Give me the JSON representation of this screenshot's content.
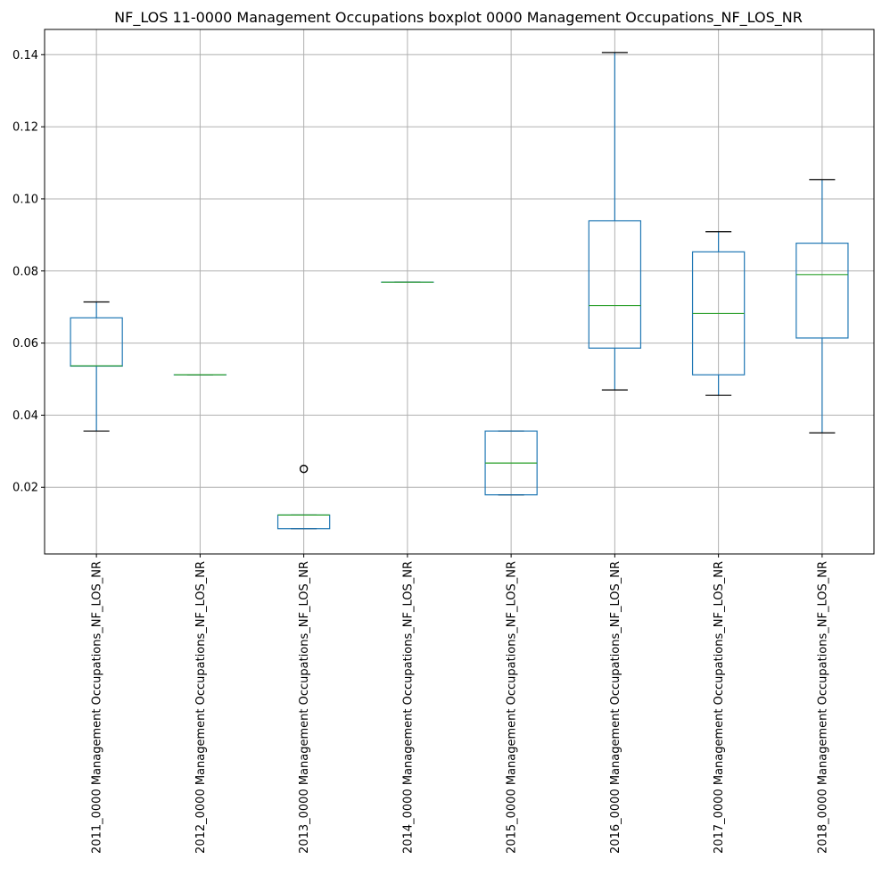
{
  "chart_data": {
    "type": "boxplot",
    "title": "NF_LOS 11-0000 Management Occupations boxplot 0000 Management Occupations_NF_LOS_NR",
    "xlabel": "",
    "ylabel": "",
    "ylim": [
      0.0015,
      0.147
    ],
    "yticks": [
      0.02,
      0.04,
      0.06,
      0.08,
      0.1,
      0.12,
      0.14
    ],
    "ytick_labels": [
      "0.02",
      "0.04",
      "0.06",
      "0.08",
      "0.10",
      "0.12",
      "0.14"
    ],
    "grid": true,
    "colors": {
      "box": "#1f77b4",
      "median": "#2ca02c",
      "whisker_cap": "#000000",
      "grid": "#b0b0b0",
      "axes": "#000000"
    },
    "categories": [
      "2011_0000 Management Occupations_NF_LOS_NR",
      "2012_0000 Management Occupations_NF_LOS_NR",
      "2013_0000 Management Occupations_NF_LOS_NR",
      "2014_0000 Management Occupations_NF_LOS_NR",
      "2015_0000 Management Occupations_NF_LOS_NR",
      "2016_0000 Management Occupations_NF_LOS_NR",
      "2017_0000 Management Occupations_NF_LOS_NR",
      "2018_0000 Management Occupations_NF_LOS_NR"
    ],
    "boxes": [
      {
        "whisker_low": 0.0356,
        "q1": 0.0536,
        "median": 0.0537,
        "q3": 0.067,
        "whisker_high": 0.0714,
        "outliers": []
      },
      {
        "whisker_low": 0.0512,
        "q1": 0.0512,
        "median": 0.0512,
        "q3": 0.0512,
        "whisker_high": 0.0512,
        "outliers": []
      },
      {
        "whisker_low": 0.0085,
        "q1": 0.0085,
        "median": 0.0123,
        "q3": 0.0123,
        "whisker_high": 0.0123,
        "outliers": [
          0.0251
        ]
      },
      {
        "whisker_low": 0.0769,
        "q1": 0.0769,
        "median": 0.0769,
        "q3": 0.0769,
        "whisker_high": 0.0769,
        "outliers": []
      },
      {
        "whisker_low": 0.0179,
        "q1": 0.0179,
        "median": 0.0267,
        "q3": 0.0356,
        "whisker_high": 0.0356,
        "outliers": []
      },
      {
        "whisker_low": 0.047,
        "q1": 0.0586,
        "median": 0.0704,
        "q3": 0.0939,
        "whisker_high": 0.1406,
        "outliers": []
      },
      {
        "whisker_low": 0.0455,
        "q1": 0.0512,
        "median": 0.0682,
        "q3": 0.0853,
        "whisker_high": 0.0909,
        "outliers": []
      },
      {
        "whisker_low": 0.0351,
        "q1": 0.0614,
        "median": 0.079,
        "q3": 0.0877,
        "whisker_high": 0.1053,
        "outliers": []
      }
    ]
  }
}
